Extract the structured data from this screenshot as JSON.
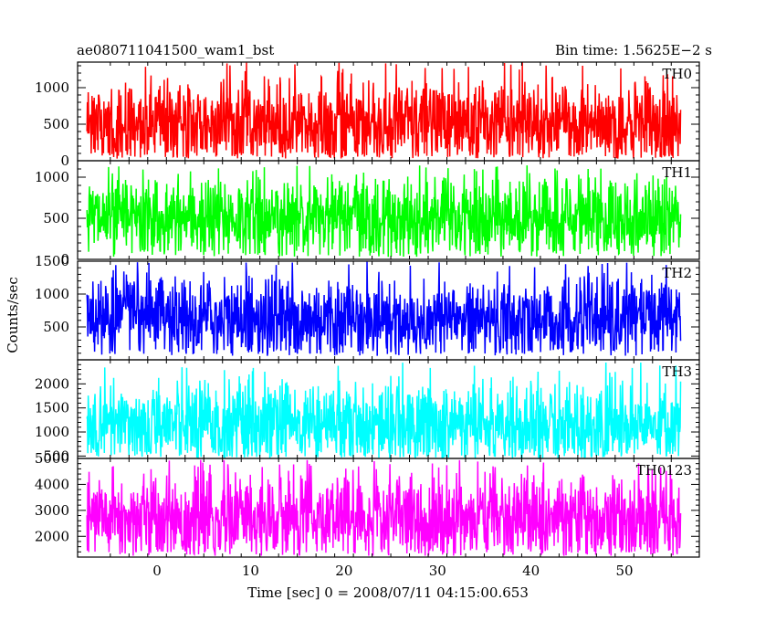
{
  "title_left": "ae080711041500_wam1_bst",
  "title_right": "Bin time: 1.5625E−2 s",
  "ylabel": "Counts/sec",
  "xlabel": "Time [sec] 0 = 2008/07/11 04:15:00.653",
  "chart_data": {
    "type": "line",
    "title": "ae080711041500_wam1_bst",
    "subtitle": "Bin time: 1.5625E−2 s",
    "xlabel": "Time [sec] 0 = 2008/07/11 04:15:00.653",
    "ylabel": "Counts/sec",
    "xlim": [
      -8.5,
      58
    ],
    "xticks": [
      0,
      10,
      20,
      30,
      40,
      50
    ],
    "data_x_range": [
      -7.5,
      56
    ],
    "bin_time": 0.015625,
    "grid": false,
    "series": [
      {
        "name": "TH0",
        "color": "#ff0000",
        "ylim": [
          0,
          1350
        ],
        "yticks": [
          0,
          500,
          1000
        ],
        "mean": 500,
        "min": 30,
        "max": 1350
      },
      {
        "name": "TH1",
        "color": "#00ff00",
        "ylim": [
          0,
          1200
        ],
        "yticks": [
          0,
          500,
          1000
        ],
        "mean": 500,
        "min": 30,
        "max": 1150
      },
      {
        "name": "TH2",
        "color": "#0000ff",
        "ylim": [
          0,
          1500
        ],
        "yticks": [
          500,
          1000,
          1500
        ],
        "mean": 620,
        "min": 60,
        "max": 1500
      },
      {
        "name": "TH3",
        "color": "#00ffff",
        "ylim": [
          450,
          2500
        ],
        "yticks": [
          500,
          1000,
          1500,
          2000
        ],
        "mean": 1150,
        "min": 450,
        "max": 2450
      },
      {
        "name": "TH0123",
        "color": "#ff00ff",
        "ylim": [
          1200,
          5000
        ],
        "yticks": [
          2000,
          3000,
          4000,
          5000
        ],
        "mean": 2700,
        "min": 1250,
        "max": 4950
      }
    ]
  }
}
